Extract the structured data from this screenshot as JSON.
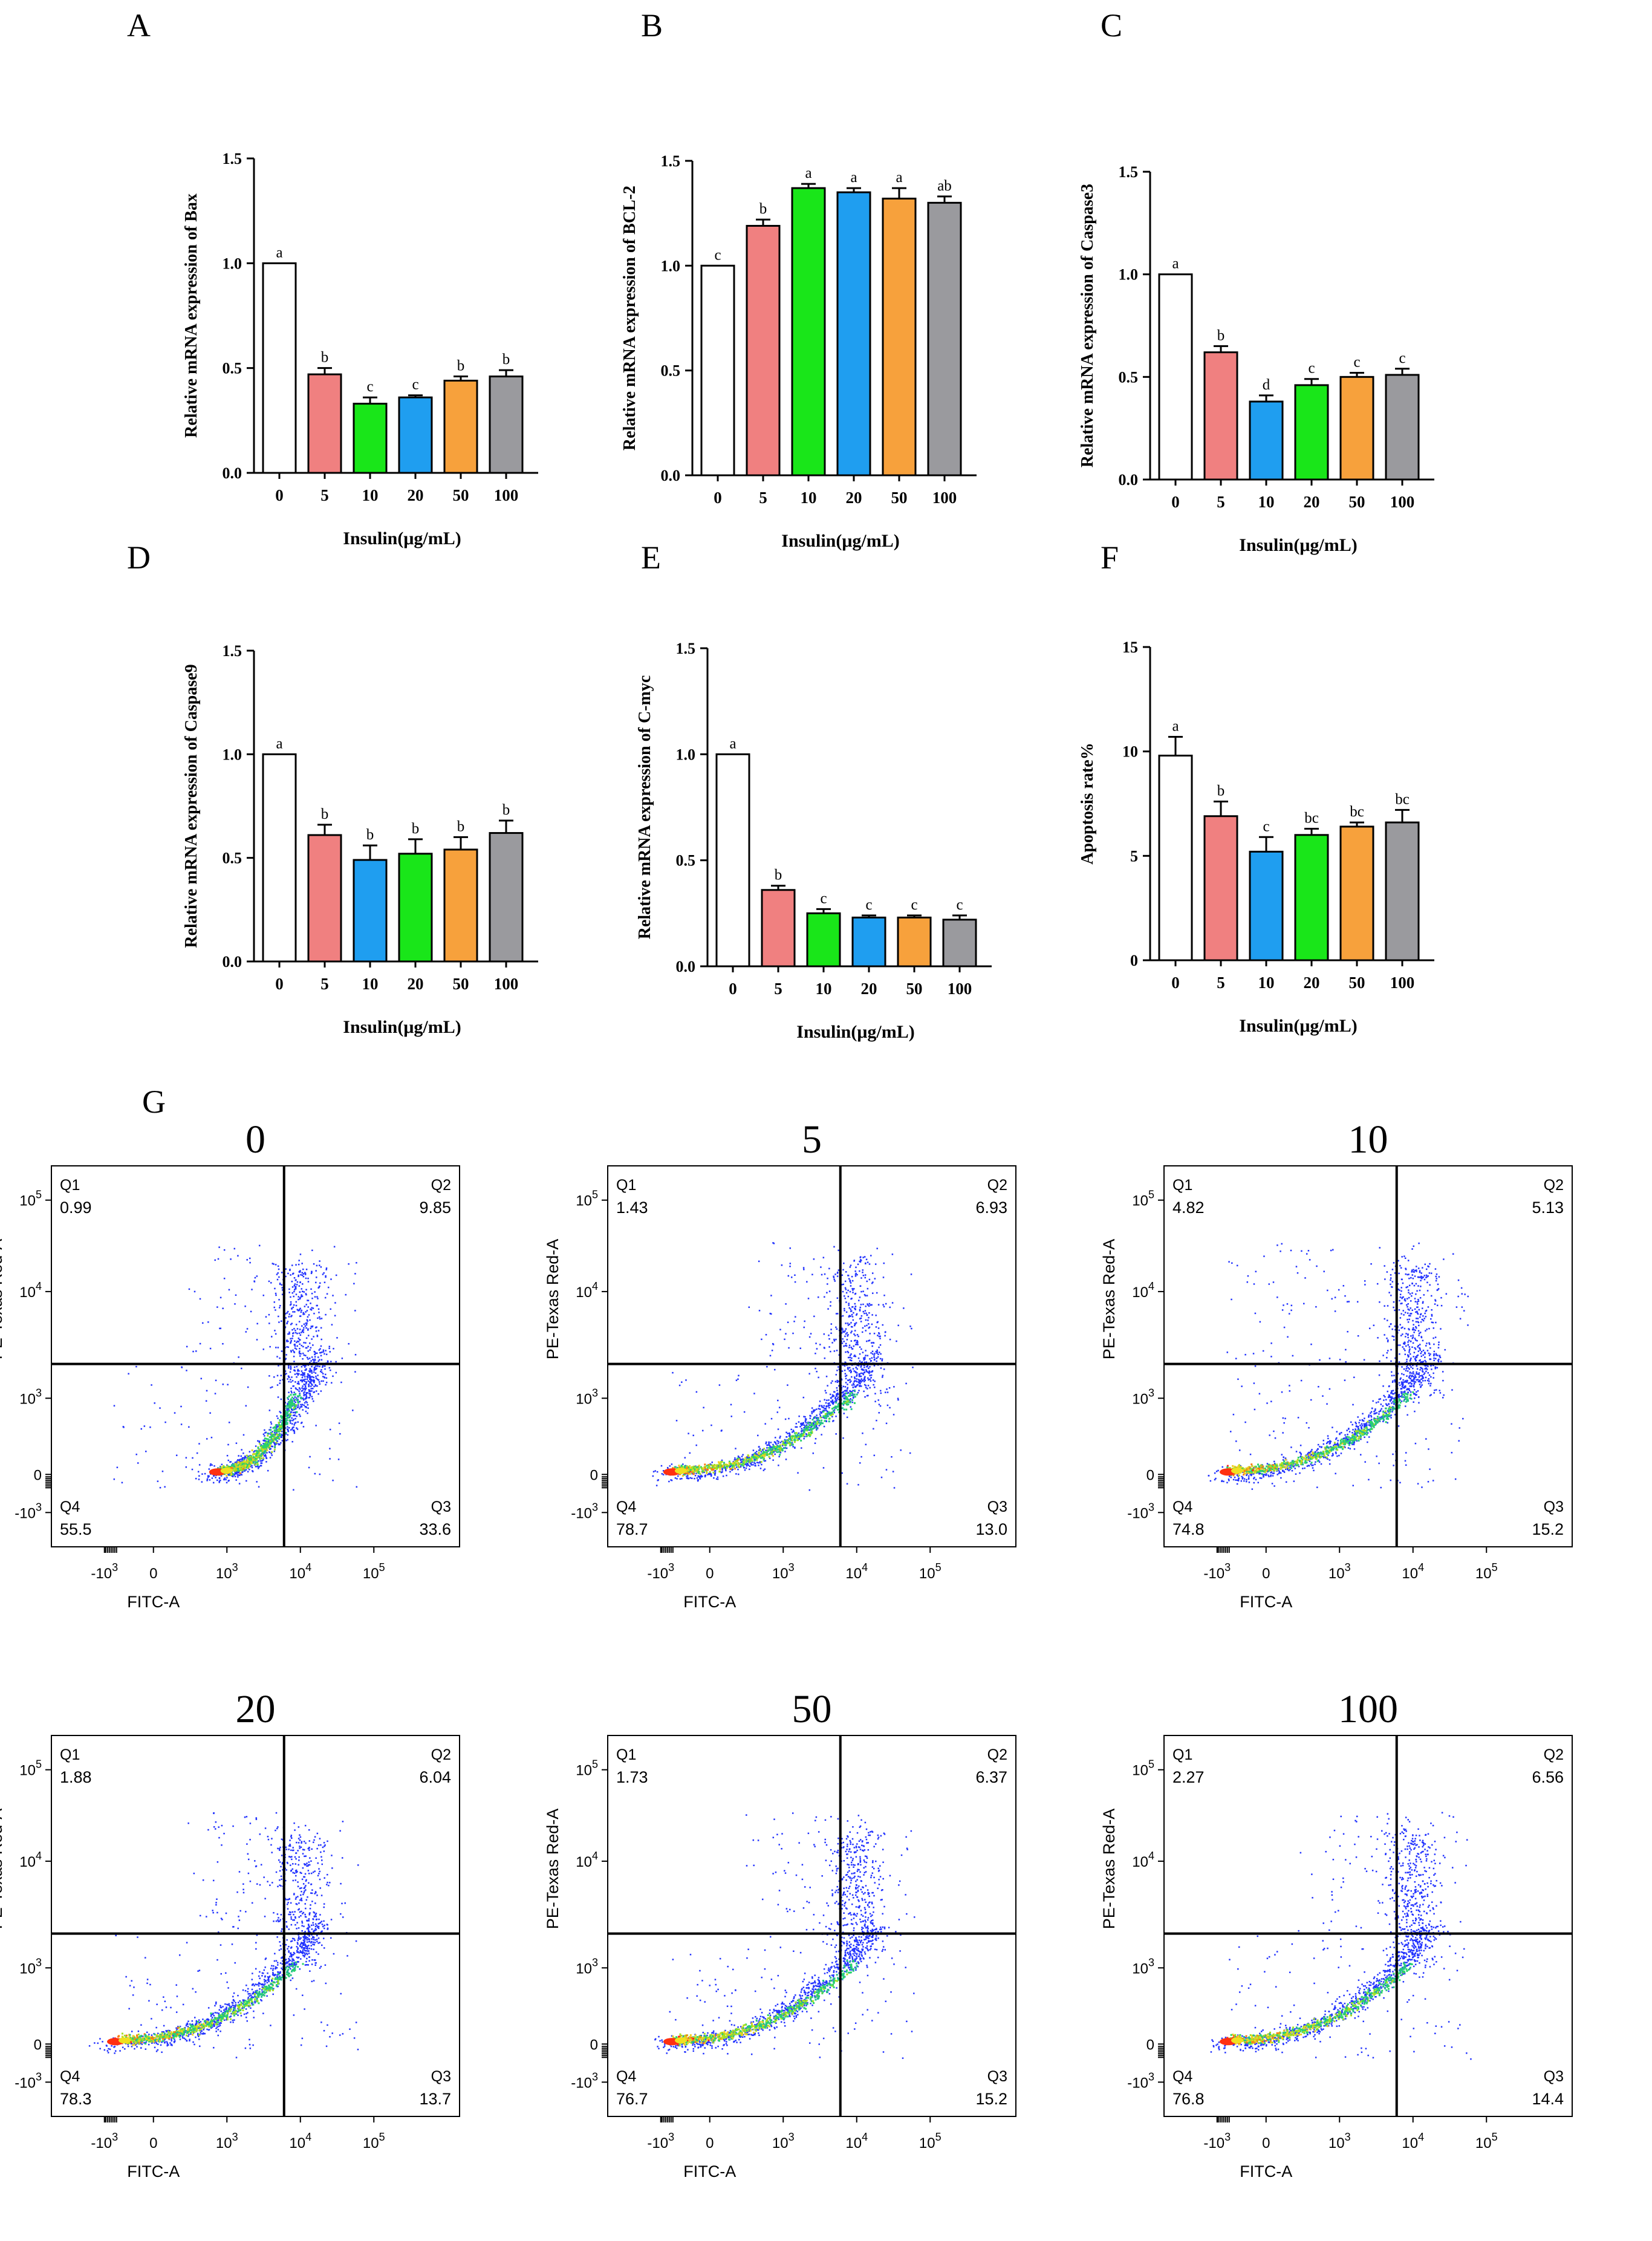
{
  "figure": {
    "panel_letters": [
      "A",
      "B",
      "C",
      "D",
      "E",
      "F",
      "G"
    ]
  },
  "chart_data": [
    {
      "type": "bar",
      "panel": "A",
      "title": "",
      "xlabel": "Insulin(μg/mL)",
      "ylabel": "Relative mRNA expression of Bax",
      "categories": [
        "0",
        "5",
        "10",
        "20",
        "50",
        "100"
      ],
      "values": [
        1.0,
        0.47,
        0.33,
        0.36,
        0.44,
        0.46
      ],
      "errors": [
        0.0,
        0.03,
        0.03,
        0.01,
        0.02,
        0.03
      ],
      "letters": [
        "a",
        "b",
        "c",
        "c",
        "b",
        "b"
      ],
      "colors": [
        "#ffffff",
        "#f08080",
        "#19e619",
        "#1f9ef0",
        "#f7a13c",
        "#9a9a9e"
      ],
      "ylim": [
        0,
        1.5
      ],
      "yticks": [
        0.0,
        0.5,
        1.0,
        1.5
      ],
      "ytick_labels": [
        "0.0",
        "0.5",
        "1.0",
        "1.5"
      ]
    },
    {
      "type": "bar",
      "panel": "B",
      "title": "",
      "xlabel": "Insulin(μg/mL)",
      "ylabel": "Relative mRNA expression of BCL-2",
      "categories": [
        "0",
        "5",
        "10",
        "20",
        "50",
        "100"
      ],
      "values": [
        1.0,
        1.19,
        1.37,
        1.35,
        1.32,
        1.3
      ],
      "errors": [
        0.0,
        0.03,
        0.02,
        0.02,
        0.05,
        0.03
      ],
      "letters": [
        "c",
        "b",
        "a",
        "a",
        "a",
        "ab"
      ],
      "colors": [
        "#ffffff",
        "#f08080",
        "#19e619",
        "#1f9ef0",
        "#f7a13c",
        "#9a9a9e"
      ],
      "ylim": [
        0,
        1.5
      ],
      "yticks": [
        0.0,
        0.5,
        1.0,
        1.5
      ],
      "ytick_labels": [
        "0.0",
        "0.5",
        "1.0",
        "1.5"
      ]
    },
    {
      "type": "bar",
      "panel": "C",
      "title": "",
      "xlabel": "Insulin(μg/mL)",
      "ylabel": "Relative mRNA expression of Caspase3",
      "categories": [
        "0",
        "5",
        "10",
        "20",
        "50",
        "100"
      ],
      "values": [
        1.0,
        0.62,
        0.38,
        0.46,
        0.5,
        0.51
      ],
      "errors": [
        0.0,
        0.03,
        0.03,
        0.03,
        0.02,
        0.03
      ],
      "letters": [
        "a",
        "b",
        "d",
        "c",
        "c",
        "c"
      ],
      "colors": [
        "#ffffff",
        "#f08080",
        "#1f9ef0",
        "#19e619",
        "#f7a13c",
        "#9a9a9e"
      ],
      "ylim": [
        0,
        1.5
      ],
      "yticks": [
        0.0,
        0.5,
        1.0,
        1.5
      ],
      "ytick_labels": [
        "0.0",
        "0.5",
        "1.0",
        "1.5"
      ]
    },
    {
      "type": "bar",
      "panel": "D",
      "title": "",
      "xlabel": "Insulin(μg/mL)",
      "ylabel": "Relative mRNA expression of Caspase9",
      "categories": [
        "0",
        "5",
        "10",
        "20",
        "50",
        "100"
      ],
      "values": [
        1.0,
        0.61,
        0.49,
        0.52,
        0.54,
        0.62
      ],
      "errors": [
        0.0,
        0.05,
        0.07,
        0.07,
        0.06,
        0.06
      ],
      "letters": [
        "a",
        "b",
        "b",
        "b",
        "b",
        "b"
      ],
      "colors": [
        "#ffffff",
        "#f08080",
        "#1f9ef0",
        "#19e619",
        "#f7a13c",
        "#9a9a9e"
      ],
      "ylim": [
        0,
        1.5
      ],
      "yticks": [
        0.0,
        0.5,
        1.0,
        1.5
      ],
      "ytick_labels": [
        "0.0",
        "0.5",
        "1.0",
        "1.5"
      ]
    },
    {
      "type": "bar",
      "panel": "E",
      "title": "",
      "xlabel": "Insulin(μg/mL)",
      "ylabel": "Relative mRNA expression of C-myc",
      "categories": [
        "0",
        "5",
        "10",
        "20",
        "50",
        "100"
      ],
      "values": [
        1.0,
        0.36,
        0.25,
        0.23,
        0.23,
        0.22
      ],
      "errors": [
        0.0,
        0.02,
        0.02,
        0.01,
        0.01,
        0.02
      ],
      "letters": [
        "a",
        "b",
        "c",
        "c",
        "c",
        "c"
      ],
      "colors": [
        "#ffffff",
        "#f08080",
        "#19e619",
        "#1f9ef0",
        "#f7a13c",
        "#9a9a9e"
      ],
      "ylim": [
        0,
        1.5
      ],
      "yticks": [
        0.0,
        0.5,
        1.0,
        1.5
      ],
      "ytick_labels": [
        "0.0",
        "0.5",
        "1.0",
        "1.5"
      ]
    },
    {
      "type": "bar",
      "panel": "F",
      "title": "",
      "xlabel": "Insulin(μg/mL)",
      "ylabel": "Apoptosis rate%",
      "categories": [
        "0",
        "5",
        "10",
        "20",
        "50",
        "100"
      ],
      "values": [
        9.8,
        6.9,
        5.2,
        6.0,
        6.4,
        6.6
      ],
      "errors": [
        0.9,
        0.7,
        0.7,
        0.3,
        0.2,
        0.6
      ],
      "letters": [
        "a",
        "b",
        "c",
        "bc",
        "bc",
        "bc"
      ],
      "colors": [
        "#ffffff",
        "#f08080",
        "#1f9ef0",
        "#19e619",
        "#f7a13c",
        "#9a9a9e"
      ],
      "ylim": [
        0,
        15
      ],
      "yticks": [
        0,
        5,
        10,
        15
      ],
      "ytick_labels": [
        "0",
        "5",
        "10",
        "15"
      ]
    },
    {
      "type": "scatter",
      "panel": "G",
      "subtype": "flow-cytometry quadrant plots",
      "xlabel": "FITC-A",
      "ylabel": "PE-Texas Red-A",
      "x_tick_labels": [
        "-10",
        "0",
        "10",
        "10",
        "10"
      ],
      "x_tick_exponents": [
        "3",
        "",
        "3",
        "4",
        "5"
      ],
      "y_tick_labels": [
        "-10",
        "0",
        "10",
        "10",
        "10"
      ],
      "y_tick_exponents": [
        "3",
        "",
        "3",
        "4",
        "5"
      ],
      "quadrant_names": [
        "Q1",
        "Q2",
        "Q3",
        "Q4"
      ],
      "plots": [
        {
          "title": "0",
          "Q1": "0.99",
          "Q2": "9.85",
          "Q3": "33.6",
          "Q4": "55.5"
        },
        {
          "title": "5",
          "Q1": "1.43",
          "Q2": "6.93",
          "Q3": "13.0",
          "Q4": "78.7"
        },
        {
          "title": "10",
          "Q1": "4.82",
          "Q2": "5.13",
          "Q3": "15.2",
          "Q4": "74.8"
        },
        {
          "title": "20",
          "Q1": "1.88",
          "Q2": "6.04",
          "Q3": "13.7",
          "Q4": "78.3"
        },
        {
          "title": "50",
          "Q1": "1.73",
          "Q2": "6.37",
          "Q3": "15.2",
          "Q4": "76.7"
        },
        {
          "title": "100",
          "Q1": "2.27",
          "Q2": "6.56",
          "Q3": "14.4",
          "Q4": "76.8"
        }
      ]
    }
  ]
}
